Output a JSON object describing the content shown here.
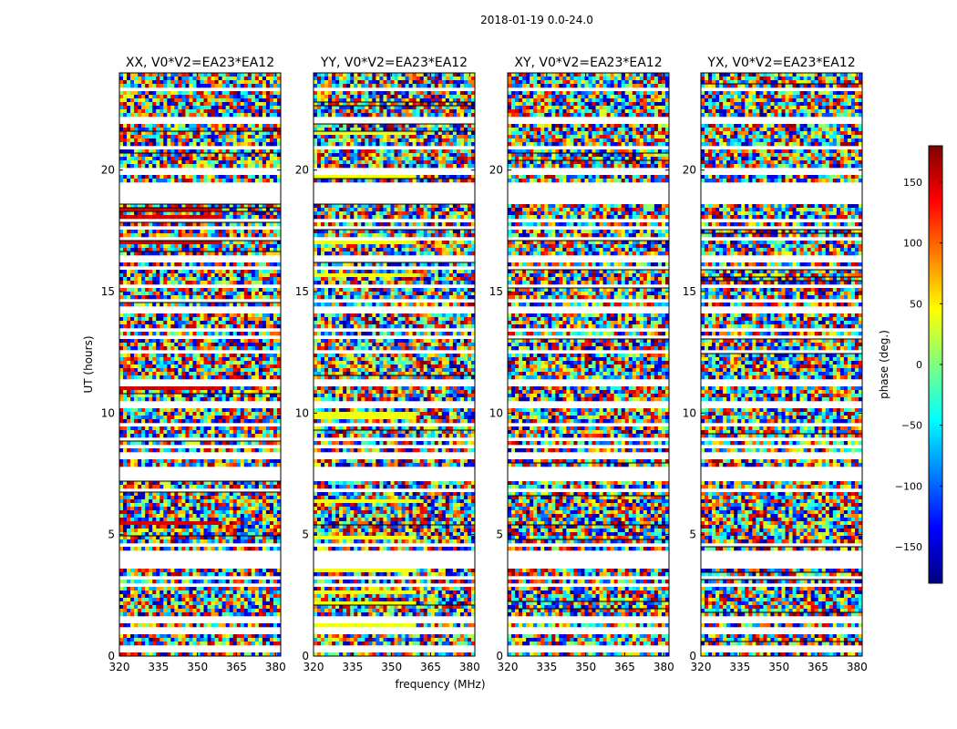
{
  "chart_data": {
    "type": "heatmap",
    "suptitle": "2018-01-19 0.0-24.0",
    "xlabel": "frequency (MHz)",
    "ylabel": "UT (hours)",
    "xlim": [
      320,
      382
    ],
    "ylim": [
      0,
      24
    ],
    "xticks": [
      "320",
      "335",
      "350",
      "365",
      "380"
    ],
    "xtick_values": [
      320,
      335,
      350,
      365,
      380
    ],
    "yticks": [
      "0",
      "5",
      "10",
      "15",
      "20"
    ],
    "ytick_values": [
      0,
      5,
      10,
      15,
      20
    ],
    "colorbar": {
      "label": "phase (deg.)",
      "range": [
        -180,
        180
      ],
      "ticks": [
        "150",
        "100",
        "50",
        "0",
        "−50",
        "−100",
        "−150"
      ],
      "tick_values": [
        150,
        100,
        50,
        0,
        -50,
        -100,
        -150
      ],
      "colormap": "jet"
    },
    "panels": [
      {
        "title": "XX, V0*V2=EA23*EA12",
        "dominant_phase_deg": 150
      },
      {
        "title": "YY, V0*V2=EA23*EA12",
        "dominant_phase_deg": 40
      },
      {
        "title": "XY, V0*V2=EA23*EA12",
        "dominant_phase_deg": null
      },
      {
        "title": "YX, V0*V2=EA23*EA12",
        "dominant_phase_deg": null
      }
    ],
    "flagged_rows_ut": [
      0.3,
      0.4,
      1.1,
      1.5,
      1.6,
      3.0,
      3.3,
      3.8,
      4.1,
      4.3,
      4.6,
      6.9,
      7.4,
      7.6,
      7.8,
      8.3,
      8.7,
      9.0,
      9.6,
      10.4,
      11.3,
      12.6,
      13.2,
      13.5,
      14.3,
      14.7,
      15.3,
      16.0,
      16.4,
      17.2,
      17.7,
      18.0,
      18.8,
      19.1,
      19.4,
      20.0,
      21.0,
      22.1,
      23.4
    ]
  }
}
